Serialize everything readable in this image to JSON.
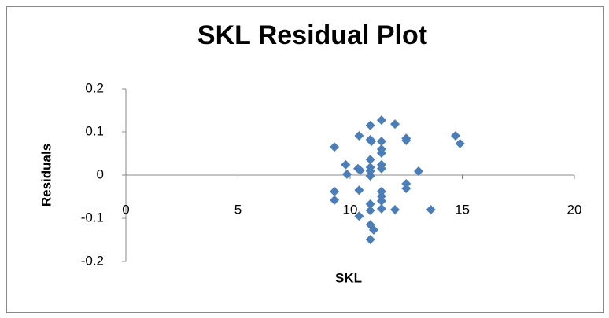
{
  "chart_data": {
    "type": "scatter",
    "title": "SKL  Residual Plot",
    "x_label": "SKL",
    "y_label": "Residuals",
    "series": [
      {
        "name": "Residuals",
        "color": "#4a7ebb",
        "x": [
          9.3,
          9.8,
          9.86,
          9.3,
          9.3,
          10.4,
          10.35,
          10.45,
          10.4,
          10.4,
          10.9,
          10.9,
          10.95,
          10.9,
          10.9,
          10.9,
          10.9,
          10.9,
          10.9,
          10.9,
          11.05,
          10.9,
          11.4,
          11.4,
          11.4,
          11.4,
          11.4,
          11.4,
          11.4,
          11.4,
          11.4,
          11.4,
          12.0,
          12.0,
          12.5,
          12.5,
          12.5,
          12.5,
          13.05,
          13.6,
          14.7,
          14.9
        ],
        "values": [
          0.065,
          0.024,
          0.002,
          -0.038,
          -0.058,
          0.091,
          0.015,
          0.011,
          -0.035,
          -0.095,
          0.115,
          0.082,
          0.078,
          0.036,
          0.018,
          0.009,
          -0.002,
          -0.067,
          -0.082,
          -0.115,
          -0.127,
          -0.149,
          0.127,
          0.078,
          0.06,
          0.051,
          0.024,
          0.015,
          -0.038,
          -0.049,
          -0.06,
          -0.078,
          0.118,
          -0.08,
          0.085,
          0.08,
          -0.02,
          -0.031,
          0.009,
          -0.08,
          0.091,
          0.073
        ]
      }
    ],
    "xlim": [
      0,
      20
    ],
    "xticks": [
      0,
      5,
      10,
      15,
      20
    ],
    "ylim": [
      -0.2,
      0.2
    ],
    "yticks": [
      -0.2,
      -0.1,
      0,
      0.1,
      0.2
    ],
    "grid": false
  }
}
